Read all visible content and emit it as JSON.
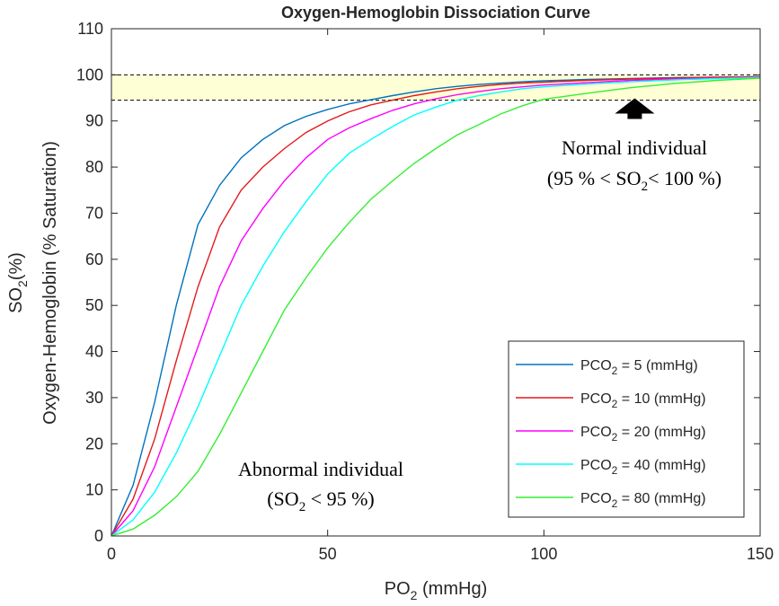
{
  "chart_data": {
    "type": "line",
    "title": "Oxygen-Hemoglobin Dissociation Curve",
    "xlabel": {
      "main": "PO",
      "sub": "2",
      "rest": " (mmHg)"
    },
    "ylabel": {
      "main": "Oxygen-Hemoglobin (% Saturation)",
      "line2_main": "SO",
      "line2_sub": "2",
      "line2_rest": "(%)"
    },
    "xlim": [
      0,
      150
    ],
    "ylim": [
      0,
      110
    ],
    "xticks": [
      0,
      50,
      100,
      150
    ],
    "yticks": [
      0,
      10,
      20,
      30,
      40,
      50,
      60,
      70,
      80,
      90,
      100,
      110
    ],
    "grid": false,
    "legend_position": "bottom-right",
    "x": [
      0,
      5,
      10,
      15,
      20,
      25,
      30,
      35,
      40,
      45,
      50,
      55,
      60,
      65,
      70,
      75,
      80,
      85,
      90,
      95,
      100,
      110,
      120,
      130,
      140,
      150
    ],
    "series": [
      {
        "name_main": "PCO",
        "name_sub": "2",
        "name_rest": " = 5 (mmHg)",
        "color": "#0072BD",
        "values": [
          0,
          11,
          29,
          50,
          67.5,
          76,
          82,
          86,
          89,
          91,
          92.5,
          93.7,
          94.6,
          95.5,
          96.3,
          97,
          97.5,
          97.9,
          98.2,
          98.5,
          98.7,
          99.0,
          99.2,
          99.4,
          99.5,
          99.6
        ]
      },
      {
        "name_main": "PCO",
        "name_sub": "2",
        "name_rest": " = 10 (mmHg)",
        "color": "#E31A1C",
        "values": [
          0,
          8,
          21,
          38,
          54,
          67,
          75,
          80,
          84,
          87.5,
          90,
          92,
          93.5,
          94.5,
          95.5,
          96.3,
          97,
          97.5,
          97.9,
          98.2,
          98.4,
          98.8,
          99.1,
          99.3,
          99.5,
          99.6
        ]
      },
      {
        "name_main": "PCO",
        "name_sub": "2",
        "name_rest": " = 20 (mmHg)",
        "color": "#FF00FF",
        "values": [
          0,
          5.5,
          15,
          28,
          41,
          54,
          64,
          71,
          77,
          82,
          86,
          88.5,
          90.5,
          92.3,
          93.7,
          94.8,
          95.7,
          96.4,
          97,
          97.4,
          97.8,
          98.3,
          98.8,
          99.1,
          99.3,
          99.5
        ]
      },
      {
        "name_main": "PCO",
        "name_sub": "2",
        "name_rest": " = 40 (mmHg)",
        "color": "#00FFFF",
        "values": [
          0,
          3.5,
          9.5,
          18,
          28,
          39,
          50,
          58.5,
          66,
          72.5,
          78.5,
          83,
          86,
          88.8,
          91.3,
          93,
          94.5,
          95.5,
          96.3,
          97,
          97.4,
          98,
          98.5,
          98.9,
          99.2,
          99.4
        ]
      },
      {
        "name_main": "PCO",
        "name_sub": "2",
        "name_rest": " = 80 (mmHg)",
        "color": "#33EE33",
        "values": [
          0,
          1.5,
          4.5,
          8.5,
          14,
          22,
          31,
          40,
          49,
          56,
          62.5,
          68,
          73,
          77,
          80.8,
          84,
          87,
          89.2,
          91.5,
          93.3,
          94.7,
          96,
          97.2,
          98.1,
          98.8,
          99.3
        ]
      }
    ],
    "band": {
      "y_low": 94.5,
      "y_high": 100,
      "color": "#FFFFD6"
    },
    "annotations": {
      "normal_line1": "Normal individual",
      "normal_line2_a": "(95 % < SO",
      "normal_line2_sub": "2",
      "normal_line2_b": "< 100 %)",
      "abnormal_line1": "Abnormal individual",
      "abnormal_line2_a": "(SO",
      "abnormal_line2_sub": "2",
      "abnormal_line2_b": " < 95 %)",
      "arrow_x": 121,
      "arrow_y": 92
    }
  }
}
